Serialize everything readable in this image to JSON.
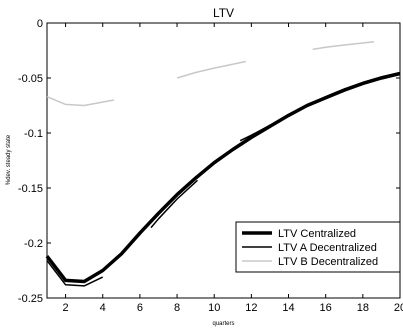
{
  "chart_data": {
    "type": "line",
    "title": "LTV",
    "xlabel": "quarters",
    "ylabel": "%dev. steady state",
    "xlim": [
      1,
      20
    ],
    "ylim": [
      -0.25,
      0
    ],
    "xticks": [
      2,
      4,
      6,
      8,
      10,
      12,
      14,
      16,
      18,
      20
    ],
    "xtick_labels": [
      "2",
      "4",
      "6",
      "8",
      "10",
      "12",
      "14",
      "16",
      "18",
      "20"
    ],
    "yticks": [
      0,
      -0.05,
      -0.1,
      -0.15,
      -0.2,
      -0.25
    ],
    "ytick_labels": [
      "0",
      "-0.05",
      "-0.1",
      "-0.15",
      "-0.2",
      "-0.25"
    ],
    "grid": false,
    "legend_position": "bottom-right",
    "series": [
      {
        "name": "LTV Centralized",
        "color": "#000000",
        "style": "solid-thick",
        "x": [
          1,
          2,
          3,
          4,
          5,
          6,
          7,
          8,
          9,
          10,
          11,
          12,
          13,
          14,
          15,
          16,
          17,
          18,
          19,
          20
        ],
        "y": [
          -0.212,
          -0.234,
          -0.235,
          -0.225,
          -0.21,
          -0.191,
          -0.173,
          -0.156,
          -0.141,
          -0.127,
          -0.115,
          -0.104,
          -0.094,
          -0.084,
          -0.075,
          -0.068,
          -0.061,
          -0.055,
          -0.05,
          -0.046
        ]
      },
      {
        "name": "LTV A Decentralized",
        "color": "#000000",
        "style": "dashed",
        "segments": [
          {
            "x": [
              1,
              2,
              3,
              4.0
            ],
            "y": [
              -0.216,
              -0.238,
              -0.239,
              -0.231
            ]
          },
          {
            "x": [
              6.6,
              7,
              8,
              9.1
            ],
            "y": [
              -0.186,
              -0.178,
              -0.16,
              -0.143
            ]
          },
          {
            "x": [
              11.4,
              12,
              13,
              14,
              15,
              16,
              17,
              18,
              19,
              20
            ],
            "y": [
              -0.107,
              -0.102,
              -0.093,
              -0.084,
              -0.075,
              -0.067,
              -0.06,
              -0.054,
              -0.049,
              -0.045
            ]
          }
        ]
      },
      {
        "name": "LTV B Decentralized",
        "color": "#c8c8c8",
        "style": "dashed",
        "segments": [
          {
            "x": [
              1,
              2,
              3,
              4.6
            ],
            "y": [
              -0.067,
              -0.074,
              -0.075,
              -0.07
            ]
          },
          {
            "x": [
              8.0,
              9,
              10,
              11.7
            ],
            "y": [
              -0.05,
              -0.045,
              -0.041,
              -0.035
            ]
          },
          {
            "x": [
              15.3,
              16,
              17,
              18.6
            ],
            "y": [
              -0.024,
              -0.022,
              -0.02,
              -0.017
            ]
          }
        ]
      }
    ]
  }
}
